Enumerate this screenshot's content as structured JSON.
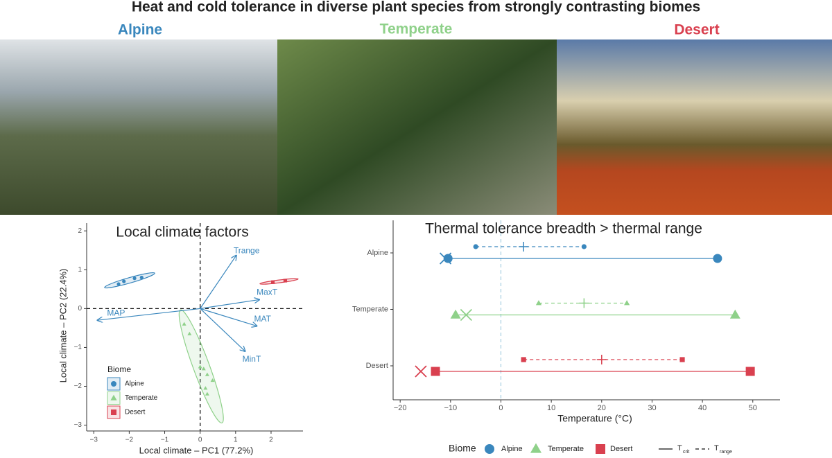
{
  "title": "Heat and cold tolerance in diverse plant species from strongly contrasting biomes",
  "panels": [
    "Alpine",
    "Temperate",
    "Desert"
  ],
  "chart_data": [
    {
      "type": "scatter",
      "title": "Local climate factors",
      "x_label": "Local climate – PC1 (77.2%)",
      "y_label": "Local climate – PC2 (22.4%)",
      "xlim": [
        -3.2,
        2.9
      ],
      "ylim": [
        -3.15,
        2.2
      ],
      "xticks": [
        {
          "value": -3,
          "label": "−3"
        },
        {
          "value": -2,
          "label": "−2"
        },
        {
          "value": -1,
          "label": "−1"
        },
        0,
        1,
        2
      ],
      "yticks": [
        {
          "value": -3,
          "label": "−3"
        },
        {
          "value": -2,
          "label": "−2"
        },
        {
          "value": -1,
          "label": "−1"
        },
        0,
        1,
        2
      ],
      "legend_title": "Biome",
      "series": [
        {
          "name": "Alpine",
          "color": "#3a87bd",
          "marker": "circle",
          "x": [
            -2.3,
            -2.15,
            -1.85,
            -1.65
          ],
          "y": [
            0.63,
            0.7,
            0.78,
            0.8
          ]
        },
        {
          "name": "Temperate",
          "color": "#8fd18a",
          "marker": "triangle",
          "x": [
            -0.45,
            -0.3,
            0.0,
            0.1,
            0.2,
            0.35,
            0.15,
            0.2
          ],
          "y": [
            -0.4,
            -0.65,
            -1.5,
            -1.55,
            -1.7,
            -1.85,
            -2.05,
            -2.2
          ]
        },
        {
          "name": "Desert",
          "color": "#d9404f",
          "marker": "square",
          "x": [
            2.05,
            2.4
          ],
          "y": [
            0.68,
            0.72
          ]
        }
      ],
      "vectors": [
        {
          "label": "Trange",
          "x": 1.02,
          "y": 1.37
        },
        {
          "label": "MaxT",
          "x": 1.67,
          "y": 0.23
        },
        {
          "label": "MAT",
          "x": 1.6,
          "y": -0.45
        },
        {
          "label": "MinT",
          "x": 1.27,
          "y": -1.1
        },
        {
          "label": "MAP",
          "x": -2.9,
          "y": -0.3
        }
      ]
    },
    {
      "type": "dumbbell",
      "title": "Thermal tolerance breadth > thermal range",
      "x_label": "Temperature (°C)",
      "xlim": [
        -21.4,
        55.4
      ],
      "xticks": [
        {
          "value": -20,
          "label": "−20"
        },
        {
          "value": -10,
          "label": "−10"
        },
        0,
        10,
        20,
        30,
        40,
        50
      ],
      "categories": [
        "Alpine",
        "Temperate",
        "Desert"
      ],
      "legend_title": "Biome",
      "line_keys": [
        {
          "symbol": "T",
          "sub": "crit",
          "dash": false
        },
        {
          "symbol": "T",
          "sub": "range",
          "dash": true
        }
      ],
      "series": [
        {
          "name": "Alpine",
          "color": "#3a87bd",
          "marker": "circle",
          "crit_low": -10.5,
          "crit_high": 43,
          "range_low": -5,
          "range_mean": 4.5,
          "range_high": 16.5,
          "cross": -11
        },
        {
          "name": "Temperate",
          "color": "#8fd18a",
          "marker": "triangle",
          "crit_low": -9,
          "crit_high": 46.5,
          "range_low": 7.5,
          "range_mean": 16.5,
          "range_high": 25,
          "cross": -6.9
        },
        {
          "name": "Desert",
          "color": "#d9404f",
          "marker": "square",
          "crit_low": -13,
          "crit_high": 49.5,
          "range_low": 4.5,
          "range_mean": 20,
          "range_high": 36,
          "cross": -15.9
        }
      ]
    }
  ]
}
